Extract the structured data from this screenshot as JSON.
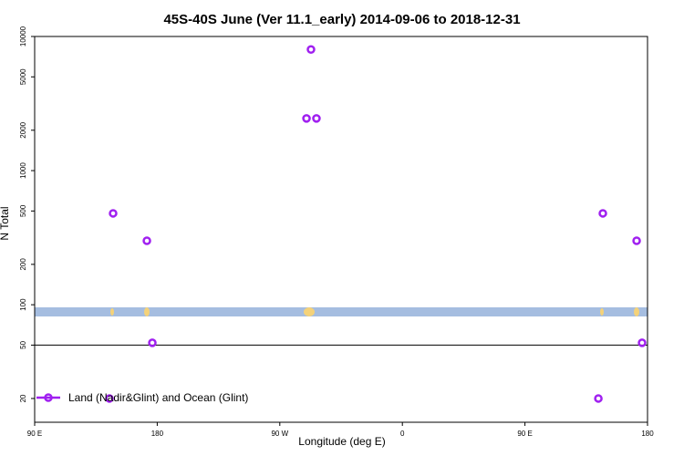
{
  "chart_data": {
    "type": "scatter",
    "title": "45S-40S June (Ver 11.1_early)   2014-09-06 to 2018-12-31",
    "x_label": "Longitude (deg E)",
    "y_label": "N Total",
    "log_y": true,
    "hline": 50,
    "xlim": [
      90,
      540
    ],
    "xticks": [
      {
        "value": 90,
        "label": "90 E"
      },
      180,
      {
        "value": 270,
        "label": "90 W"
      },
      {
        "value": 360,
        "label": "0"
      },
      {
        "value": 450,
        "label": "90 E"
      },
      {
        "value": 540,
        "label": "180"
      }
    ],
    "ylim": [
      13.3,
      10000
    ],
    "yticks": [
      20,
      50,
      100,
      200,
      500,
      1000,
      2000,
      5000,
      10000
    ],
    "legend": "bottom-left",
    "series": [
      {
        "name": "Land (Nadir&Glint) and Ocean (Glint)",
        "color": "#a020f0",
        "x": [
          147.6,
          172.4,
          176.4,
          144.9,
          289.6,
          292.9,
          296.9,
          503.9,
          507.2,
          532,
          536
        ],
        "values": [
          480,
          300,
          52,
          20,
          2450,
          8000,
          2450,
          20,
          480,
          300,
          52
        ]
      }
    ]
  }
}
